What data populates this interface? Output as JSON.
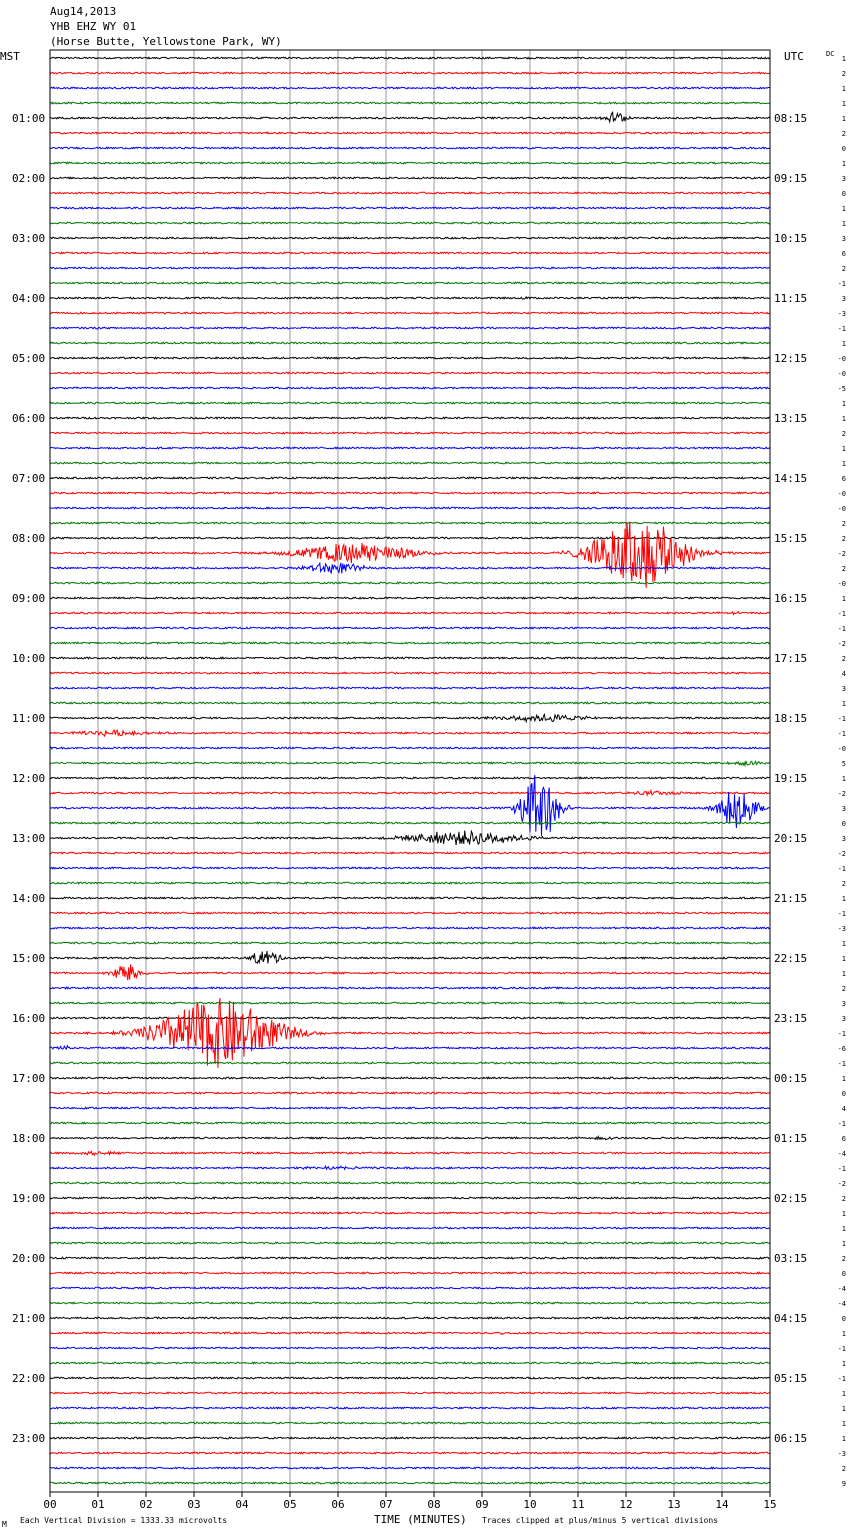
{
  "header": {
    "date": "Aug14,2013",
    "station": "YHB EHZ WY 01",
    "location": "(Horse Butte, Yellowstone Park, WY)"
  },
  "left_axis_title": "MST",
  "right_axis_title": "UTC",
  "dc_title": "DC",
  "footer": {
    "tiny_mark": "M",
    "vertical_division": "Each Vertical Division = 1333.33 microvolts",
    "xlabel": "TIME (MINUTES)",
    "clip_note": "Traces clipped at plus/minus 5 vertical divisions"
  },
  "colors": {
    "trace_cycle": [
      "#000000",
      "#ff0000",
      "#0000ff",
      "#007700"
    ],
    "grid": "#999999"
  },
  "chart_data": {
    "type": "line",
    "title": "",
    "xlabel": "TIME (MINUTES)",
    "ylabel": "",
    "xlim": [
      0,
      15
    ],
    "x_ticks": [
      "00",
      "01",
      "02",
      "03",
      "04",
      "05",
      "06",
      "07",
      "08",
      "09",
      "10",
      "11",
      "12",
      "13",
      "14",
      "15"
    ],
    "row_minutes": 15,
    "row_count": 96,
    "left_hour_labels": [
      "01:00",
      "02:00",
      "03:00",
      "04:00",
      "05:00",
      "06:00",
      "07:00",
      "08:00",
      "09:00",
      "10:00",
      "11:00",
      "12:00",
      "13:00",
      "14:00",
      "15:00",
      "16:00",
      "17:00",
      "18:00",
      "19:00",
      "20:00",
      "21:00",
      "22:00",
      "23:00"
    ],
    "right_hour_labels": [
      "08:15",
      "09:15",
      "10:15",
      "11:15",
      "12:15",
      "13:15",
      "14:15",
      "15:15",
      "16:15",
      "17:15",
      "18:15",
      "19:15",
      "20:15",
      "21:15",
      "22:15",
      "23:15",
      "00:15",
      "01:15",
      "02:15",
      "03:15",
      "04:15",
      "05:15",
      "06:15"
    ],
    "dc_offsets": [
      "1",
      "2",
      "1",
      "1",
      "1",
      "2",
      "0",
      "1",
      "3",
      "0",
      "1",
      "1",
      "3",
      "6",
      "2",
      "-1",
      "3",
      "-3",
      "-1",
      "1",
      "-0",
      "-0",
      "-5",
      "1",
      "1",
      "2",
      "1",
      "1",
      "6",
      "-0",
      "-0",
      "2",
      "2",
      "-2",
      "2",
      "-0",
      "1",
      "-1",
      "-1",
      "-2",
      "2",
      "4",
      "3",
      "1",
      "-1",
      "-1",
      "-0",
      "5",
      "1",
      "-2",
      "3",
      "0",
      "3",
      "-2",
      "-1",
      "2",
      "1",
      "-1",
      "-3",
      "1",
      "1",
      "1",
      "2",
      "3",
      "3",
      "-1",
      "-6",
      "-1",
      "1",
      "0",
      "4",
      "-1",
      "6",
      "-4",
      "-1",
      "-2",
      "2",
      "1",
      "1",
      "1",
      "2",
      "0",
      "-4",
      "-4",
      "0",
      "1",
      "-1",
      "1",
      "-1",
      "1",
      "1",
      "1",
      "1",
      "-3",
      "2",
      "9"
    ],
    "noise_amplitude": 0.12,
    "events": [
      {
        "row": 4,
        "time": 11.8,
        "amplitude": 0.9,
        "duration": 0.5
      },
      {
        "row": 16,
        "time": 9.9,
        "amplitude": 0.3,
        "duration": 0.2
      },
      {
        "row": 33,
        "time": 6.4,
        "amplitude": 1.4,
        "duration": 2.5
      },
      {
        "row": 33,
        "time": 12.3,
        "amplitude": 5.0,
        "duration": 2.0
      },
      {
        "row": 34,
        "time": 5.9,
        "amplitude": 0.8,
        "duration": 1.2
      },
      {
        "row": 37,
        "time": 14.2,
        "amplitude": 0.2,
        "duration": 0.5
      },
      {
        "row": 44,
        "time": 10.3,
        "amplitude": 0.5,
        "duration": 2.0
      },
      {
        "row": 45,
        "time": 1.3,
        "amplitude": 0.4,
        "duration": 1.5
      },
      {
        "row": 47,
        "time": 14.5,
        "amplitude": 0.4,
        "duration": 0.6
      },
      {
        "row": 49,
        "time": 12.6,
        "amplitude": 0.3,
        "duration": 1.2
      },
      {
        "row": 50,
        "time": 10.2,
        "amplitude": 5.0,
        "duration": 0.8
      },
      {
        "row": 50,
        "time": 14.3,
        "amplitude": 3.0,
        "duration": 0.8
      },
      {
        "row": 52,
        "time": 8.6,
        "amplitude": 1.0,
        "duration": 2.5
      },
      {
        "row": 60,
        "time": 4.5,
        "amplitude": 1.2,
        "duration": 0.6
      },
      {
        "row": 61,
        "time": 1.6,
        "amplitude": 1.5,
        "duration": 0.6
      },
      {
        "row": 65,
        "time": 3.5,
        "amplitude": 5.0,
        "duration": 2.5
      },
      {
        "row": 66,
        "time": 0.3,
        "amplitude": 0.3,
        "duration": 0.5
      },
      {
        "row": 72,
        "time": 11.5,
        "amplitude": 0.2,
        "duration": 0.6
      },
      {
        "row": 73,
        "time": 1.0,
        "amplitude": 0.3,
        "duration": 0.8
      },
      {
        "row": 74,
        "time": 6.0,
        "amplitude": 0.2,
        "duration": 2.0
      },
      {
        "row": 85,
        "time": 9.4,
        "amplitude": 0.4,
        "duration": 0.1
      }
    ]
  }
}
